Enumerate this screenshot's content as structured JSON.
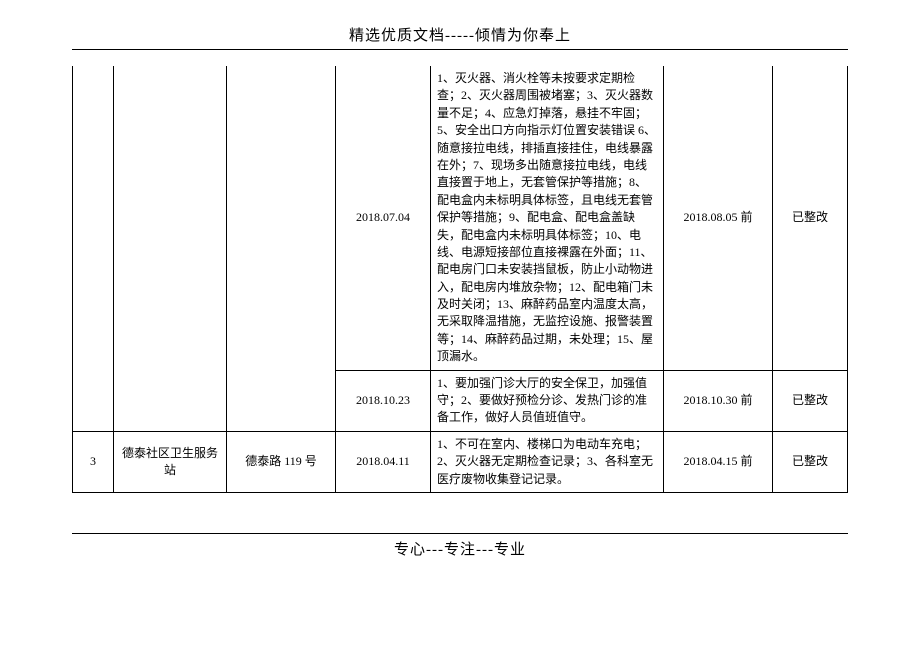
{
  "header": "精选优质文档-----倾情为你奉上",
  "footer": "专心---专注---专业",
  "rows": [
    {
      "idx": "",
      "name": "",
      "addr": "",
      "date": "2018.07.04",
      "desc": "1、灭火器、消火栓等未按要求定期检查；2、灭火器周围被堵塞；3、灭火器数量不足；4、应急灯掉落，悬挂不牢固；5、安全出口方向指示灯位置安装错误 6、随意接拉电线，排插直接挂住，电线暴露在外；7、现场多出随意接拉电线，电线直接置于地上，无套管保护等措施；8、配电盒内未标明具体标签，且电线无套管保护等措施；9、配电盒、配电盒盖缺失，配电盒内未标明具体标签；10、电线、电源短接部位直接裸露在外面；11、配电房门口未安装挡鼠板，防止小动物进入，配电房内堆放杂物；12、配电箱门未及时关闭；13、麻醉药品室内温度太高，无采取降温措施，无监控设施、报警装置等；14、麻醉药品过期，未处理；15、屋顶漏水。",
      "due": "2018.08.05 前",
      "stat": "已整改"
    },
    {
      "idx": "",
      "name": "",
      "addr": "",
      "date": "2018.10.23",
      "desc": "1、要加强门诊大厅的安全保卫，加强值守；2、要做好预检分诊、发热门诊的准备工作，做好人员值班值守。",
      "due": "2018.10.30 前",
      "stat": "已整改"
    },
    {
      "idx": "3",
      "name": "德泰社区卫生服务站",
      "addr": "德泰路 119 号",
      "date": "2018.04.11",
      "desc": "1、不可在室内、楼梯口为电动车充电；2、灭火器无定期检查记录；3、各科室无医疗废物收集登记记录。",
      "due": "2018.04.15 前",
      "stat": "已整改"
    }
  ]
}
